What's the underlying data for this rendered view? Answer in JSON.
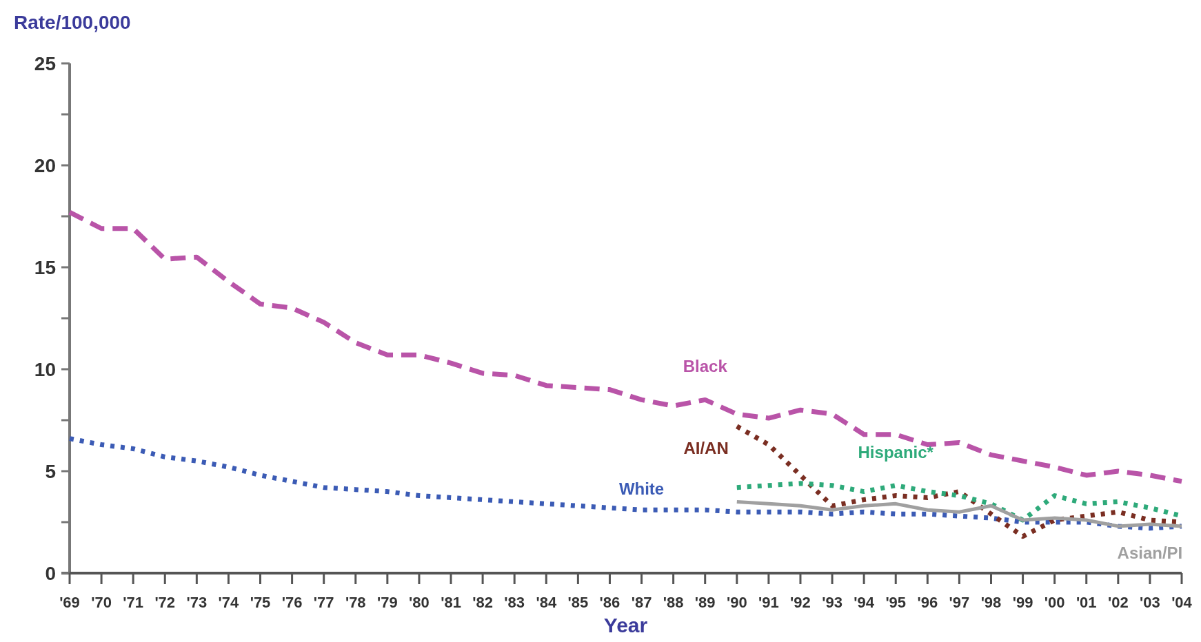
{
  "chart_data": {
    "type": "line",
    "xlabel": "Year",
    "ylabel": "Rate/100,000",
    "categories": [
      "'69",
      "'70",
      "'71",
      "'72",
      "'73",
      "'74",
      "'75",
      "'76",
      "'77",
      "'78",
      "'79",
      "'80",
      "'81",
      "'82",
      "'83",
      "'84",
      "'85",
      "'86",
      "'87",
      "'88",
      "'89",
      "'90",
      "'91",
      "'92",
      "'93",
      "'94",
      "'95",
      "'96",
      "'97",
      "'98",
      "'99",
      "'00",
      "'01",
      "'02",
      "'03",
      "'04"
    ],
    "series": [
      {
        "name": "Black",
        "color": "#b954a8",
        "line_style": "dashed",
        "values": [
          17.7,
          16.9,
          16.9,
          15.4,
          15.5,
          14.3,
          13.2,
          13.0,
          12.3,
          11.3,
          10.7,
          10.7,
          10.3,
          9.8,
          9.7,
          9.2,
          9.1,
          9.0,
          8.5,
          8.2,
          8.5,
          7.8,
          7.6,
          8.0,
          7.8,
          6.8,
          6.8,
          6.3,
          6.4,
          5.8,
          5.5,
          5.2,
          4.8,
          5.0,
          4.8,
          4.5
        ]
      },
      {
        "name": "White",
        "color": "#3b5bb5",
        "line_style": "dotted",
        "values": [
          6.6,
          6.3,
          6.1,
          5.7,
          5.5,
          5.2,
          4.8,
          4.5,
          4.2,
          4.1,
          4.0,
          3.8,
          3.7,
          3.6,
          3.5,
          3.4,
          3.3,
          3.2,
          3.1,
          3.1,
          3.1,
          3.0,
          3.0,
          3.0,
          2.9,
          3.0,
          2.9,
          2.9,
          2.8,
          2.7,
          2.5,
          2.5,
          2.5,
          2.3,
          2.2,
          2.3
        ]
      },
      {
        "name": "AI/AN",
        "color": "#7a2e22",
        "line_style": "dotted",
        "values": [
          null,
          null,
          null,
          null,
          null,
          null,
          null,
          null,
          null,
          null,
          null,
          null,
          null,
          null,
          null,
          null,
          null,
          null,
          null,
          null,
          null,
          7.2,
          6.3,
          4.8,
          3.3,
          3.6,
          3.8,
          3.7,
          4.0,
          2.9,
          1.8,
          2.6,
          2.8,
          3.0,
          2.6,
          2.5
        ]
      },
      {
        "name": "Hispanic*",
        "color": "#2eaa7a",
        "line_style": "dotted",
        "values": [
          null,
          null,
          null,
          null,
          null,
          null,
          null,
          null,
          null,
          null,
          null,
          null,
          null,
          null,
          null,
          null,
          null,
          null,
          null,
          null,
          null,
          4.2,
          4.3,
          4.4,
          4.3,
          4.0,
          4.3,
          4.0,
          3.8,
          3.4,
          2.6,
          3.8,
          3.4,
          3.5,
          3.2,
          2.8
        ]
      },
      {
        "name": "Asian/PI",
        "color": "#a0a0a0",
        "line_style": "solid",
        "values": [
          null,
          null,
          null,
          null,
          null,
          null,
          null,
          null,
          null,
          null,
          null,
          null,
          null,
          null,
          null,
          null,
          null,
          null,
          null,
          null,
          null,
          3.5,
          3.4,
          3.3,
          3.1,
          3.3,
          3.4,
          3.1,
          3.0,
          3.3,
          2.6,
          2.7,
          2.6,
          2.3,
          2.4,
          2.3
        ]
      }
    ],
    "ylim": [
      0,
      25
    ],
    "yticks": [
      0,
      {
        "value": 2.5,
        "label": null
      },
      5,
      {
        "value": 7.5,
        "label": null
      },
      10,
      {
        "value": 12.5,
        "label": null
      },
      15,
      {
        "value": 17.5,
        "label": null
      },
      20,
      {
        "value": 22.5,
        "label": null
      },
      25
    ],
    "grid": false,
    "legend": false,
    "marker": "none"
  }
}
